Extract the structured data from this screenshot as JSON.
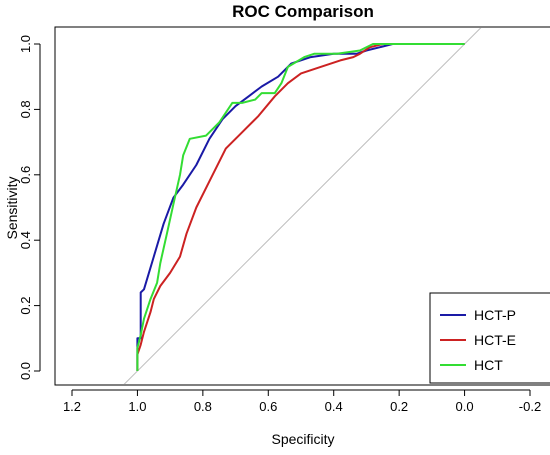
{
  "chart_data": {
    "type": "line",
    "title": "ROC Comparison",
    "xlabel": "Specificity",
    "ylabel": "Sensitivity",
    "xlim": [
      1.2,
      -0.2
    ],
    "ylim": [
      0.0,
      1.0
    ],
    "x_reversed": true,
    "xticks": [
      1.2,
      1.0,
      0.8,
      0.6,
      0.4,
      0.2,
      0.0,
      -0.2
    ],
    "xtick_labels": [
      "1.2",
      "1.0",
      "0.8",
      "0.6",
      "0.4",
      "0.2",
      "0.0",
      "-0.2"
    ],
    "yticks": [
      0.0,
      0.2,
      0.4,
      0.6,
      0.8,
      1.0
    ],
    "ytick_labels": [
      "0.0",
      "0.2",
      "0.4",
      "0.6",
      "0.8",
      "1.0"
    ],
    "grid": false,
    "legend": "bottom-right",
    "diagonal_reference": {
      "color": "#bdbdbd"
    },
    "series": [
      {
        "name": "HCT-P",
        "color": "#1a1aa6",
        "points": [
          [
            1.0,
            0.0
          ],
          [
            1.0,
            0.08
          ],
          [
            1.0,
            0.1
          ],
          [
            0.99,
            0.1
          ],
          [
            0.99,
            0.24
          ],
          [
            0.98,
            0.25
          ],
          [
            0.95,
            0.35
          ],
          [
            0.92,
            0.45
          ],
          [
            0.89,
            0.53
          ],
          [
            0.86,
            0.57
          ],
          [
            0.82,
            0.63
          ],
          [
            0.78,
            0.71
          ],
          [
            0.74,
            0.77
          ],
          [
            0.7,
            0.81
          ],
          [
            0.66,
            0.84
          ],
          [
            0.62,
            0.87
          ],
          [
            0.57,
            0.9
          ],
          [
            0.53,
            0.94
          ],
          [
            0.47,
            0.96
          ],
          [
            0.4,
            0.97
          ],
          [
            0.33,
            0.97
          ],
          [
            0.3,
            0.98
          ],
          [
            0.26,
            0.99
          ],
          [
            0.22,
            1.0
          ],
          [
            0.0,
            1.0
          ]
        ]
      },
      {
        "name": "HCT-E",
        "color": "#cc2222",
        "points": [
          [
            1.0,
            0.0
          ],
          [
            1.0,
            0.05
          ],
          [
            0.99,
            0.08
          ],
          [
            0.98,
            0.12
          ],
          [
            0.96,
            0.18
          ],
          [
            0.95,
            0.22
          ],
          [
            0.93,
            0.26
          ],
          [
            0.9,
            0.3
          ],
          [
            0.87,
            0.35
          ],
          [
            0.85,
            0.42
          ],
          [
            0.82,
            0.5
          ],
          [
            0.78,
            0.58
          ],
          [
            0.73,
            0.68
          ],
          [
            0.68,
            0.73
          ],
          [
            0.63,
            0.78
          ],
          [
            0.58,
            0.84
          ],
          [
            0.54,
            0.88
          ],
          [
            0.5,
            0.91
          ],
          [
            0.44,
            0.93
          ],
          [
            0.38,
            0.95
          ],
          [
            0.34,
            0.96
          ],
          [
            0.32,
            0.97
          ],
          [
            0.29,
            0.99
          ],
          [
            0.25,
            1.0
          ],
          [
            0.0,
            1.0
          ]
        ]
      },
      {
        "name": "HCT",
        "color": "#33dd33",
        "points": [
          [
            1.0,
            0.0
          ],
          [
            1.0,
            0.07
          ],
          [
            0.99,
            0.11
          ],
          [
            0.98,
            0.16
          ],
          [
            0.96,
            0.22
          ],
          [
            0.94,
            0.27
          ],
          [
            0.93,
            0.33
          ],
          [
            0.91,
            0.42
          ],
          [
            0.89,
            0.51
          ],
          [
            0.87,
            0.6
          ],
          [
            0.86,
            0.66
          ],
          [
            0.84,
            0.71
          ],
          [
            0.79,
            0.72
          ],
          [
            0.75,
            0.76
          ],
          [
            0.71,
            0.82
          ],
          [
            0.68,
            0.82
          ],
          [
            0.64,
            0.83
          ],
          [
            0.62,
            0.85
          ],
          [
            0.58,
            0.85
          ],
          [
            0.56,
            0.88
          ],
          [
            0.54,
            0.93
          ],
          [
            0.49,
            0.96
          ],
          [
            0.46,
            0.97
          ],
          [
            0.39,
            0.97
          ],
          [
            0.32,
            0.98
          ],
          [
            0.28,
            1.0
          ],
          [
            0.0,
            1.0
          ]
        ]
      }
    ]
  }
}
